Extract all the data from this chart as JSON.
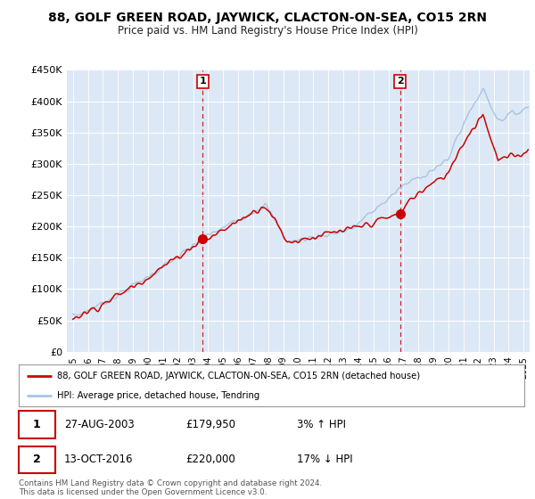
{
  "title": "88, GOLF GREEN ROAD, JAYWICK, CLACTON-ON-SEA, CO15 2RN",
  "subtitle": "Price paid vs. HM Land Registry's House Price Index (HPI)",
  "ylim": [
    0,
    450000
  ],
  "yticks": [
    0,
    50000,
    100000,
    150000,
    200000,
    250000,
    300000,
    350000,
    400000,
    450000
  ],
  "ytick_labels": [
    "£0",
    "£50K",
    "£100K",
    "£150K",
    "£200K",
    "£250K",
    "£300K",
    "£350K",
    "£400K",
    "£450K"
  ],
  "xlim": [
    1994.6,
    2025.4
  ],
  "transaction1": {
    "date": 2003.65,
    "price": 179950,
    "label": "1"
  },
  "transaction2": {
    "date": 2016.78,
    "price": 220000,
    "label": "2"
  },
  "hpi_color": "#a8c4e0",
  "price_color": "#cc0000",
  "vline_color": "#cc0000",
  "plot_bg": "#dce8f5",
  "legend_label1": "88, GOLF GREEN ROAD, JAYWICK, CLACTON-ON-SEA, CO15 2RN (detached house)",
  "legend_label2": "HPI: Average price, detached house, Tendring",
  "note1_label": "1",
  "note1_date": "27-AUG-2003",
  "note1_price": "£179,950",
  "note1_hpi": "3% ↑ HPI",
  "note2_label": "2",
  "note2_date": "13-OCT-2016",
  "note2_price": "£220,000",
  "note2_hpi": "17% ↓ HPI",
  "footer": "Contains HM Land Registry data © Crown copyright and database right 2024.\nThis data is licensed under the Open Government Licence v3.0."
}
